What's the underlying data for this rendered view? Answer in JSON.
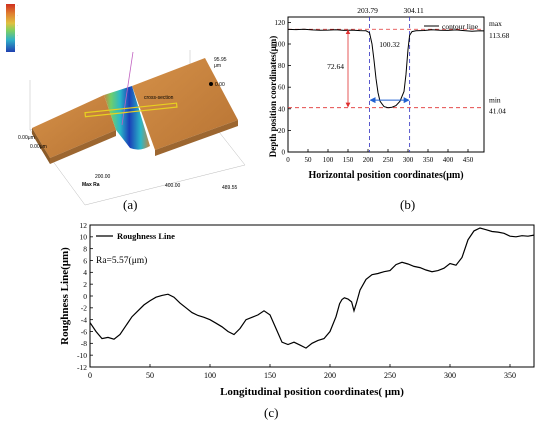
{
  "panels": {
    "a": "(a)",
    "b": "(b)",
    "c": "(c)"
  },
  "panel_a": {
    "scale_max": "95.95",
    "scale_unit": "μm",
    "scale_zero": "0.00",
    "axis_top_left": "0.00μm",
    "axis_bottom_left": "0.00μm",
    "axis_200": "200.00",
    "axis_400": "400.00",
    "axis_end": "489.55",
    "axis_label": "Max Ra",
    "annotation": "cross-section",
    "colors": {
      "surface": "#c8843f",
      "groove_deep": "#1a3fb8",
      "groove_mid": "#2ab8c8",
      "groove_edge": "#6fcf6a",
      "line": "#e8d020",
      "plane": "#c060c0"
    }
  },
  "chart_data": [
    {
      "type": "line",
      "xlabel": "Horizontal position coordinates(μm)",
      "ylabel": "Depth position coordinates(μm)",
      "xlim": [
        0,
        490
      ],
      "ylim": [
        0,
        125
      ],
      "xticks": [
        "0",
        "50",
        "100",
        "150",
        "200",
        "250",
        "300",
        "350",
        "400",
        "450"
      ],
      "yticks": [
        "0",
        "20",
        "40",
        "60",
        "80",
        "100",
        "120"
      ],
      "grid": false,
      "legend": {
        "position": "top-right",
        "entries": [
          "contour line"
        ]
      },
      "series": [
        {
          "name": "contour line",
          "color": "#000000",
          "x": [
            0,
            20,
            40,
            60,
            80,
            100,
            120,
            140,
            160,
            180,
            195,
            203.79,
            210,
            215,
            220,
            225,
            230,
            240,
            250,
            260,
            270,
            280,
            290,
            295,
            300,
            304.11,
            310,
            320,
            340,
            360,
            380,
            400,
            420,
            440,
            460,
            480,
            490
          ],
          "y": [
            113.5,
            113.3,
            113.6,
            113.1,
            112.8,
            112.9,
            113.2,
            112.6,
            112.9,
            112.4,
            112.2,
            110.5,
            100,
            85,
            68,
            55,
            47,
            42,
            41.04,
            41.5,
            43,
            47,
            56,
            72,
            95,
            108,
            111.5,
            112.3,
            112.5,
            113.2,
            112.8,
            112.6,
            113.1,
            112.4,
            111.8,
            112.3,
            112.1
          ]
        }
      ],
      "reference_lines": {
        "max": 113.68,
        "min": 41.04,
        "x_left": 203.79,
        "x_right": 304.11
      },
      "annotations": {
        "max_label": "max",
        "max_value": "113.68",
        "min_label": "min",
        "min_value": "41.04",
        "x_left_value": "203.79",
        "x_right_value": "304.11",
        "depth": "72.64",
        "width": "100.32"
      },
      "colors": {
        "reference": "#e03030",
        "vertical": "#3030c0",
        "arrow_depth": "#e03030",
        "arrow_width": "#2060d0"
      }
    },
    {
      "type": "line",
      "xlabel": "Longitudinal position coordinates( μm)",
      "ylabel": "Roughness Line(μm)",
      "xlim": [
        0,
        370
      ],
      "ylim": [
        -12,
        12
      ],
      "xticks": [
        "0",
        "50",
        "100",
        "150",
        "200",
        "250",
        "300",
        "350"
      ],
      "yticks": [
        "-12",
        "-10",
        "-8",
        "-6",
        "-4",
        "-2",
        "0",
        "2",
        "4",
        "6",
        "8",
        "10",
        "12"
      ],
      "grid": false,
      "legend": {
        "position": "top-left",
        "entries": [
          "Roughness Line"
        ]
      },
      "annotation": "Ra=5.57(μm)",
      "series": [
        {
          "name": "Roughness Line",
          "color": "#000000",
          "x": [
            0,
            5,
            10,
            15,
            20,
            25,
            30,
            35,
            40,
            45,
            50,
            55,
            60,
            65,
            70,
            75,
            80,
            85,
            90,
            95,
            100,
            105,
            110,
            115,
            120,
            125,
            130,
            135,
            140,
            145,
            150,
            155,
            160,
            165,
            170,
            175,
            180,
            185,
            190,
            195,
            200,
            205,
            208,
            210,
            212,
            215,
            218,
            220,
            222,
            225,
            230,
            235,
            240,
            245,
            250,
            255,
            260,
            265,
            270,
            275,
            280,
            285,
            290,
            295,
            300,
            305,
            310,
            315,
            320,
            325,
            330,
            335,
            340,
            345,
            350,
            355,
            360,
            365,
            370
          ],
          "y": [
            -4.5,
            -6,
            -7.2,
            -7,
            -7.3,
            -6.5,
            -5,
            -3.5,
            -2.5,
            -1.5,
            -0.8,
            -0.2,
            0.1,
            0.3,
            -0.2,
            -1.2,
            -2,
            -2.8,
            -3.3,
            -3.6,
            -4,
            -4.6,
            -5.2,
            -6,
            -6.5,
            -5.5,
            -4,
            -3.6,
            -3.2,
            -2.5,
            -3.2,
            -5.5,
            -7.8,
            -8.2,
            -7.8,
            -8.3,
            -8.8,
            -8,
            -7.5,
            -7.2,
            -6,
            -3.5,
            -1.3,
            -0.6,
            -0.3,
            -0.5,
            -1,
            -2.5,
            -1.2,
            1,
            2.8,
            3.6,
            3.8,
            4.1,
            4.3,
            5.3,
            5.7,
            5.4,
            5,
            4.8,
            4.4,
            4.1,
            4.3,
            4.7,
            5.5,
            5.2,
            6.5,
            9.5,
            11,
            11.5,
            11.2,
            10.9,
            10.8,
            10.6,
            10.1,
            10,
            10.2,
            10.1,
            10.3
          ]
        }
      ]
    }
  ]
}
